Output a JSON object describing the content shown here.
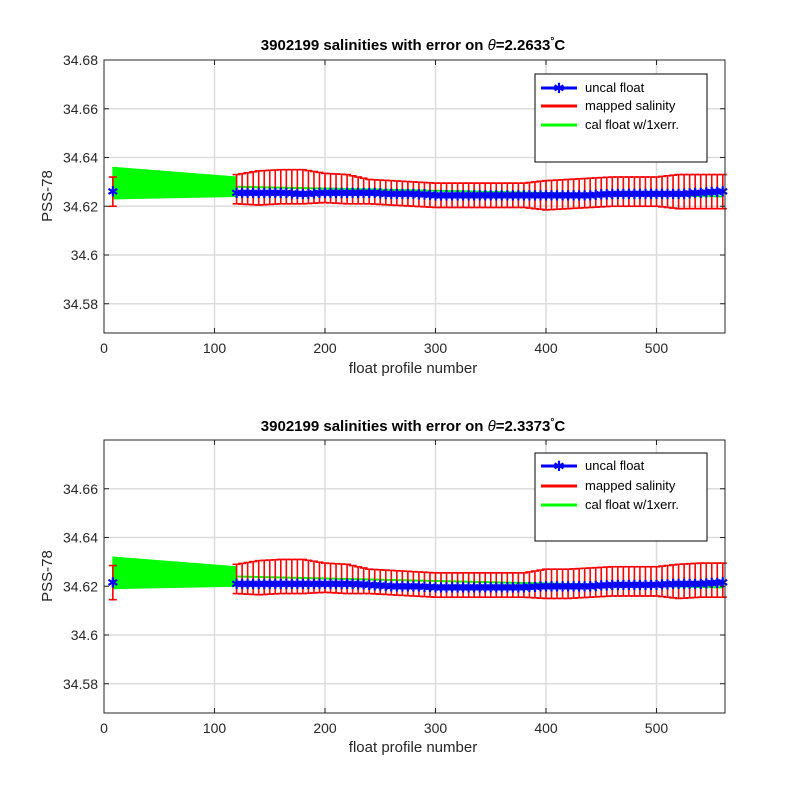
{
  "colors": {
    "uncal": "#0000ff",
    "mapped": "#ff0000",
    "cal": "#00ff00",
    "axis": "#262626",
    "grid": "#dcdcdc"
  },
  "chart_data": [
    {
      "type": "line",
      "title": "3902199 salinities with error on θ=2.2633°C",
      "title_prefix": "3902199 salinities with error on ",
      "title_theta": "θ",
      "title_value": "=2.2633",
      "title_deg": "°",
      "title_unit": "C",
      "xlabel": "float profile number",
      "ylabel": "PSS-78",
      "xlim": [
        0,
        562
      ],
      "ylim": [
        34.568,
        34.68
      ],
      "xticks": [
        0,
        100,
        200,
        300,
        400,
        500
      ],
      "xtick_labels": [
        "0",
        "100",
        "200",
        "300",
        "400",
        "500"
      ],
      "yticks": [
        34.58,
        34.6,
        34.62,
        34.64,
        34.66,
        34.68
      ],
      "ytick_labels": [
        "34.58",
        "34.6",
        "34.62",
        "34.64",
        "34.66",
        "34.68"
      ],
      "grid": true,
      "legend_position": "top-right",
      "legend": [
        "uncal float",
        "mapped salinity",
        "cal float w/1xerr."
      ],
      "series": [
        {
          "name": "uncal float",
          "x": [
            8,
            120,
            140,
            160,
            180,
            200,
            220,
            240,
            260,
            280,
            300,
            320,
            340,
            360,
            380,
            400,
            420,
            440,
            460,
            480,
            500,
            520,
            540,
            560
          ],
          "y": [
            34.626,
            34.6255,
            34.6255,
            34.6255,
            34.625,
            34.6255,
            34.6255,
            34.6255,
            34.625,
            34.625,
            34.6245,
            34.6245,
            34.6245,
            34.6245,
            34.6245,
            34.6245,
            34.6245,
            34.6245,
            34.625,
            34.625,
            34.625,
            34.625,
            34.6255,
            34.626
          ]
        },
        {
          "name": "mapped salinity",
          "x": [
            8,
            120,
            140,
            160,
            180,
            200,
            220,
            240,
            260,
            280,
            300,
            320,
            340,
            360,
            380,
            400,
            420,
            440,
            460,
            480,
            500,
            520,
            540,
            560
          ],
          "y": [
            34.626,
            34.627,
            34.6275,
            34.628,
            34.628,
            34.6275,
            34.627,
            34.626,
            34.6255,
            34.625,
            34.6245,
            34.6245,
            34.6245,
            34.6245,
            34.6245,
            34.6245,
            34.625,
            34.6255,
            34.626,
            34.626,
            34.626,
            34.626,
            34.626,
            34.626
          ],
          "err": [
            0.006,
            0.006,
            0.007,
            0.007,
            0.007,
            0.006,
            0.006,
            0.005,
            0.005,
            0.005,
            0.005,
            0.005,
            0.005,
            0.005,
            0.005,
            0.006,
            0.006,
            0.006,
            0.006,
            0.006,
            0.006,
            0.007,
            0.007,
            0.007
          ]
        },
        {
          "name": "cal float w/1xerr.",
          "x": [
            8,
            120
          ],
          "upper": [
            34.636,
            34.632
          ],
          "lower": [
            34.623,
            34.624
          ]
        }
      ]
    },
    {
      "type": "line",
      "title": "3902199 salinities with error on θ=2.3373°C",
      "title_prefix": "3902199 salinities with error on ",
      "title_theta": "θ",
      "title_value": "=2.3373",
      "title_deg": "°",
      "title_unit": "C",
      "xlabel": "float profile number",
      "ylabel": "PSS-78",
      "xlim": [
        0,
        562
      ],
      "ylim": [
        34.568,
        34.68
      ],
      "xticks": [
        0,
        100,
        200,
        300,
        400,
        500
      ],
      "xtick_labels": [
        "0",
        "100",
        "200",
        "300",
        "400",
        "500"
      ],
      "yticks": [
        34.58,
        34.6,
        34.62,
        34.64,
        34.66
      ],
      "ytick_labels": [
        "34.58",
        "34.6",
        "34.62",
        "34.64",
        "34.66"
      ],
      "grid": true,
      "legend_position": "top-right",
      "legend": [
        "uncal float",
        "mapped salinity",
        "cal float w/1xerr."
      ],
      "series": [
        {
          "name": "uncal float",
          "x": [
            8,
            120,
            140,
            160,
            180,
            200,
            220,
            240,
            260,
            280,
            300,
            320,
            340,
            360,
            380,
            400,
            420,
            440,
            460,
            480,
            500,
            520,
            540,
            560
          ],
          "y": [
            34.6215,
            34.621,
            34.621,
            34.621,
            34.621,
            34.621,
            34.621,
            34.6205,
            34.62,
            34.62,
            34.6195,
            34.6195,
            34.6195,
            34.6195,
            34.6195,
            34.62,
            34.62,
            34.62,
            34.6205,
            34.6205,
            34.6205,
            34.621,
            34.621,
            34.6215
          ]
        },
        {
          "name": "mapped salinity",
          "x": [
            8,
            120,
            140,
            160,
            180,
            200,
            220,
            240,
            260,
            280,
            300,
            320,
            340,
            360,
            380,
            400,
            420,
            440,
            460,
            480,
            500,
            520,
            540,
            560
          ],
          "y": [
            34.6215,
            34.623,
            34.6235,
            34.624,
            34.624,
            34.6235,
            34.623,
            34.622,
            34.6215,
            34.621,
            34.6205,
            34.6205,
            34.6205,
            34.6205,
            34.6205,
            34.621,
            34.621,
            34.6215,
            34.622,
            34.622,
            34.622,
            34.622,
            34.6225,
            34.6225
          ],
          "err": [
            0.007,
            0.006,
            0.007,
            0.007,
            0.007,
            0.006,
            0.006,
            0.005,
            0.005,
            0.005,
            0.005,
            0.005,
            0.005,
            0.005,
            0.005,
            0.006,
            0.006,
            0.006,
            0.006,
            0.006,
            0.006,
            0.007,
            0.007,
            0.007
          ]
        },
        {
          "name": "cal float w/1xerr.",
          "x": [
            8,
            120
          ],
          "upper": [
            34.632,
            34.628
          ],
          "lower": [
            34.619,
            34.62
          ]
        }
      ]
    }
  ]
}
